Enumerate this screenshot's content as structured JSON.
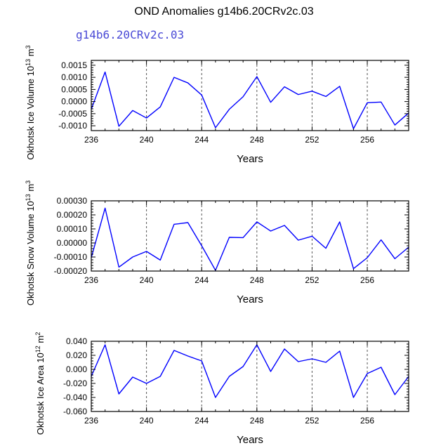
{
  "figure": {
    "title": "OND Anomalies g14b6.20CRv2c.03",
    "subtitle": "g14b6.20CRv2c.03"
  },
  "colors": {
    "line": "#0000ff",
    "axis": "#000000",
    "gridline": "#555555"
  },
  "chart_data": [
    {
      "type": "line",
      "ylabel": "Okhotsk Ice Volume 10",
      "ylabel_exp": "13",
      "ylabel_unit": " m",
      "ylabel_unit_exp": "3",
      "xlabel": "Years",
      "xlim": [
        236,
        259
      ],
      "ylim": [
        -0.0012,
        0.0017
      ],
      "xticks": [
        236,
        240,
        244,
        248,
        252,
        256
      ],
      "yticks": [
        -0.001,
        -0.0005,
        0.0,
        0.0005,
        0.001,
        0.0015
      ],
      "ytick_labels": [
        "-0.0010",
        "-0.0005",
        "0.0000",
        "0.0005",
        "0.0010",
        "0.0015"
      ],
      "vlines": [
        240,
        244,
        248,
        252,
        256
      ],
      "x": [
        236,
        237,
        238,
        239,
        240,
        241,
        242,
        243,
        244,
        245,
        246,
        247,
        248,
        249,
        250,
        251,
        252,
        253,
        254,
        255,
        256,
        257,
        258,
        259
      ],
      "values": [
        -0.00032,
        0.00122,
        -0.00102,
        -0.00037,
        -0.00068,
        -0.00022,
        0.001,
        0.00077,
        0.00027,
        -0.00108,
        -0.00032,
        0.0002,
        0.00103,
        -3e-05,
        0.00061,
        0.00029,
        0.00043,
        0.00021,
        0.00063,
        -0.00112,
        -5e-05,
        -2e-05,
        -0.00097,
        -0.00047
      ]
    },
    {
      "type": "line",
      "ylabel": "Okhotsk Snow Volume 10",
      "ylabel_exp": "13",
      "ylabel_unit": " m",
      "ylabel_unit_exp": "3",
      "xlabel": "Years",
      "xlim": [
        236,
        259
      ],
      "ylim": [
        -0.0002,
        0.0003
      ],
      "xticks": [
        236,
        240,
        244,
        248,
        252,
        256
      ],
      "yticks": [
        -0.0002,
        -0.0001,
        0.0,
        0.0001,
        0.0002,
        0.0003
      ],
      "ytick_labels": [
        "-0.00020",
        "-0.00010",
        "0.00000",
        "0.00010",
        "0.00020",
        "0.00030"
      ],
      "vlines": [
        240,
        244,
        248,
        252,
        256
      ],
      "x": [
        236,
        237,
        238,
        239,
        240,
        241,
        242,
        243,
        244,
        245,
        246,
        247,
        248,
        249,
        250,
        251,
        252,
        253,
        254,
        255,
        256,
        257,
        258,
        259
      ],
      "values": [
        -0.000105,
        0.000248,
        -0.000172,
        -0.0001,
        -6e-05,
        -0.000122,
        0.000133,
        0.000145,
        -2e-05,
        -0.000195,
        4e-05,
        3.8e-05,
        0.00015,
        8.5e-05,
        0.000125,
        2e-05,
        4.8e-05,
        -3.8e-05,
        0.00015,
        -0.000183,
        -0.000105,
        2.2e-05,
        -0.000112,
        -3e-05
      ]
    },
    {
      "type": "line",
      "ylabel": "Okhotsk Ice Area 10",
      "ylabel_exp": "12",
      "ylabel_unit": " m",
      "ylabel_unit_exp": "2",
      "xlabel": "Years",
      "xlim": [
        236,
        259
      ],
      "ylim": [
        -0.06,
        0.04
      ],
      "xticks": [
        236,
        240,
        244,
        248,
        252,
        256
      ],
      "yticks": [
        -0.06,
        -0.04,
        -0.02,
        0.0,
        0.02,
        0.04
      ],
      "ytick_labels": [
        "-0.060",
        "-0.040",
        "-0.020",
        "0.000",
        "0.020",
        "0.040"
      ],
      "vlines": [
        240,
        244,
        248,
        252,
        256
      ],
      "x": [
        236,
        237,
        238,
        239,
        240,
        241,
        242,
        243,
        244,
        245,
        246,
        247,
        248,
        249,
        250,
        251,
        252,
        253,
        254,
        255,
        256,
        257,
        258,
        259
      ],
      "values": [
        -0.01,
        0.035,
        -0.035,
        -0.011,
        -0.02,
        -0.01,
        0.027,
        0.019,
        0.012,
        -0.04,
        -0.01,
        0.004,
        0.035,
        -0.003,
        0.029,
        0.011,
        0.015,
        0.01,
        0.026,
        -0.04,
        -0.006,
        0.003,
        -0.036,
        -0.01
      ]
    }
  ]
}
